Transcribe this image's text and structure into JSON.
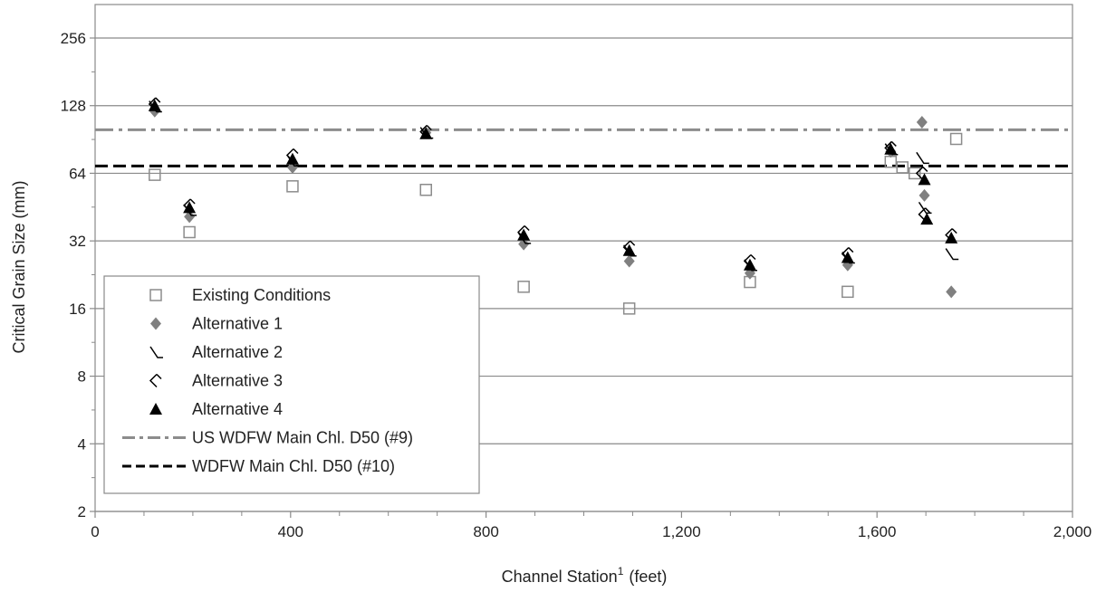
{
  "chart_data": {
    "type": "scatter",
    "xlabel": "Channel Station",
    "xlabel_sup": "1",
    "xlabel_unit": "(feet)",
    "ylabel": "Critical Grain Size (mm)",
    "xlim": [
      0,
      2000
    ],
    "ylim": [
      2,
      256
    ],
    "yscale": "log2",
    "grid": "horizontal",
    "legend_position": "bottom-left",
    "xticks": [
      0,
      400,
      800,
      1200,
      1600,
      2000
    ],
    "xtick_labels": [
      "0",
      "400",
      "800",
      "1,200",
      "1,600",
      "2,000"
    ],
    "yticks": [
      2,
      4,
      8,
      16,
      32,
      64,
      128,
      256
    ],
    "ytick_labels": [
      "2",
      "4",
      "8",
      "16",
      "32",
      "64",
      "128",
      "256"
    ],
    "series": [
      {
        "name": "Existing Conditions",
        "marker": "square-open",
        "color": "#8c8c8c",
        "points": [
          [
            122,
            63
          ],
          [
            193,
            35
          ],
          [
            404,
            56
          ],
          [
            677,
            54
          ],
          [
            877,
            20
          ],
          [
            1093,
            16
          ],
          [
            1340,
            21
          ],
          [
            1540,
            19
          ],
          [
            1628,
            72
          ],
          [
            1652,
            68
          ],
          [
            1677,
            64
          ],
          [
            1762,
            91
          ]
        ]
      },
      {
        "name": "Alternative 1",
        "marker": "diamond",
        "color": "#808080",
        "points": [
          [
            122,
            121
          ],
          [
            193,
            41
          ],
          [
            404,
            68
          ],
          [
            677,
            97
          ],
          [
            877,
            31
          ],
          [
            1093,
            26
          ],
          [
            1340,
            23
          ],
          [
            1540,
            25
          ],
          [
            1628,
            80
          ],
          [
            1692,
            108
          ],
          [
            1697,
            51
          ],
          [
            1752,
            19
          ]
        ]
      },
      {
        "name": "Alternative 2",
        "marker": "tick-open",
        "color": "#000000",
        "points": [
          [
            122,
            127
          ],
          [
            193,
            44
          ],
          [
            404,
            73
          ],
          [
            677,
            97
          ],
          [
            877,
            33
          ],
          [
            1093,
            29
          ],
          [
            1340,
            25
          ],
          [
            1540,
            27
          ],
          [
            1628,
            82
          ],
          [
            1692,
            75
          ],
          [
            1697,
            45
          ],
          [
            1752,
            28
          ]
        ]
      },
      {
        "name": "Alternative 3",
        "marker": "chevron-open",
        "color": "#000000",
        "points": [
          [
            122,
            130
          ],
          [
            193,
            46
          ],
          [
            404,
            77
          ],
          [
            677,
            98
          ],
          [
            877,
            35
          ],
          [
            1093,
            30
          ],
          [
            1340,
            26
          ],
          [
            1540,
            28
          ],
          [
            1628,
            83
          ],
          [
            1692,
            64
          ],
          [
            1697,
            42
          ],
          [
            1752,
            34
          ]
        ]
      },
      {
        "name": "Alternative 4",
        "marker": "triangle",
        "color": "#000000",
        "points": [
          [
            122,
            128
          ],
          [
            193,
            45
          ],
          [
            404,
            74
          ],
          [
            677,
            96
          ],
          [
            877,
            34
          ],
          [
            1093,
            29
          ],
          [
            1340,
            25
          ],
          [
            1540,
            27
          ],
          [
            1628,
            82
          ],
          [
            1697,
            60
          ],
          [
            1702,
            40
          ],
          [
            1752,
            33
          ]
        ]
      }
    ],
    "reference_lines": [
      {
        "name": "US WDFW Main Chl. D50 (#9)",
        "value": 100,
        "style": "dash-dot",
        "color": "#8c8c8c"
      },
      {
        "name": "WDFW Main Chl. D50 (#10)",
        "value": 69,
        "style": "dashed",
        "color": "#000000"
      }
    ]
  }
}
